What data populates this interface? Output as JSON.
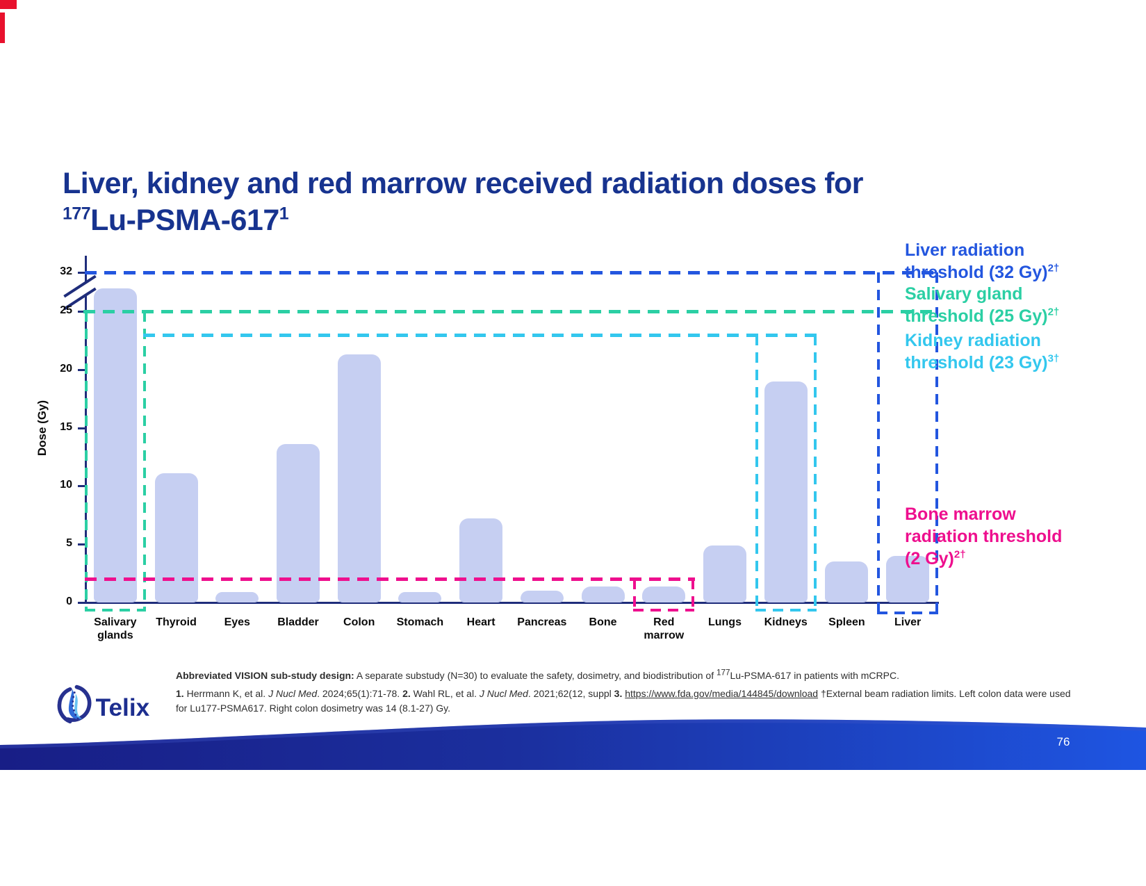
{
  "slide": {
    "title_line1": "Liver, kidney and red marrow received radiation doses for",
    "title_iso_sup": "177",
    "title_line2": "Lu-PSMA-617",
    "title_ref_sup": "1",
    "page_number": "76",
    "logo_text": "Telix",
    "icons": {
      "logo": "telix-swirl-icon"
    }
  },
  "colors": {
    "title_blue": "#17338F",
    "axis_navy": "#1F2D7B",
    "bar_fill": "#C6CFF2",
    "liver_blue": "#2356DF",
    "salivary_teal": "#2BCFA4",
    "kidney_cyan": "#33C7EE",
    "bone_marrow_pink": "#EE0F8E",
    "footer_gradient_left": "#181E86",
    "footer_gradient_right": "#1E55E2"
  },
  "chart_data": {
    "type": "bar",
    "title": "",
    "xlabel": "",
    "ylabel": "Dose (Gy)",
    "ylim": [
      0,
      32
    ],
    "grid": false,
    "axis_break_between": [
      25,
      32
    ],
    "y_ticks": [
      32,
      25,
      20,
      15,
      10,
      5,
      0
    ],
    "categories": [
      "Salivary\nglands",
      "Thyroid",
      "Eyes",
      "Bladder",
      "Colon",
      "Stomach",
      "Heart",
      "Pancreas",
      "Bone",
      "Red\nmarrow",
      "Lungs",
      "Kidneys",
      "Spleen",
      "Liver"
    ],
    "values": [
      28,
      11.1,
      0.9,
      13.6,
      21.3,
      0.9,
      7.2,
      1.0,
      1.4,
      1.4,
      4.9,
      19,
      3.5,
      4
    ],
    "truncated_bars": [
      "Salivary\nglands"
    ],
    "note": "Salivary glands bar exceeds the axis break and is drawn truncated between the 25 and 32 Gy gridlines",
    "bar_color": "#C6CFF2",
    "legend_position": "right",
    "thresholds": [
      {
        "name": "liver",
        "value": 32,
        "color": "#2356DF",
        "label_lines": [
          "Liver radiation",
          "threshold (32 Gy)"
        ],
        "sup": "2†",
        "boxed_category": "Liver"
      },
      {
        "name": "salivary",
        "value": 25,
        "color": "#2BCFA4",
        "label_lines": [
          "Salivary gland",
          "threshold (25 Gy)"
        ],
        "sup": "2†",
        "boxed_category": "Salivary glands"
      },
      {
        "name": "kidney",
        "value": 23,
        "color": "#33C7EE",
        "label_lines": [
          "Kidney radiation",
          "threshold (23 Gy)"
        ],
        "sup": "3†",
        "boxed_category": "Kidneys"
      },
      {
        "name": "bone_marrow",
        "value": 2,
        "color": "#EE0F8E",
        "label_lines": [
          "Bone marrow",
          "radiation threshold",
          "(2 Gy)"
        ],
        "sup": "2†",
        "boxed_category": "Red marrow"
      }
    ]
  },
  "footnotes": {
    "study_design": [
      {
        "b": "Abbreviated VISION sub-study design:"
      },
      {
        "t": " A separate substudy (N=30) to evaluate the safety, dosimetry, and biodistribution of "
      },
      {
        "sup": "177"
      },
      {
        "t": "Lu-PSMA-617 in patients with mCRPC."
      }
    ],
    "references": [
      {
        "b": "1."
      },
      {
        "t": " Herrmann K, et al. "
      },
      {
        "i": "J Nucl Med"
      },
      {
        "t": ". 2024;65(1):71-78. "
      },
      {
        "b": "2."
      },
      {
        "t": " Wahl RL, et al. "
      },
      {
        "i": "J Nucl Med"
      },
      {
        "t": ". 2021;62(12, suppl "
      },
      {
        "b": "3."
      },
      {
        "t": " "
      },
      {
        "link": "https://www.fda.gov/media/144845/download"
      },
      {
        "t": "  †External beam radiation limits. Left colon data were used for Lu177-PSMA617. Right colon dosimetry was 14 (8.1-27) Gy."
      }
    ]
  }
}
